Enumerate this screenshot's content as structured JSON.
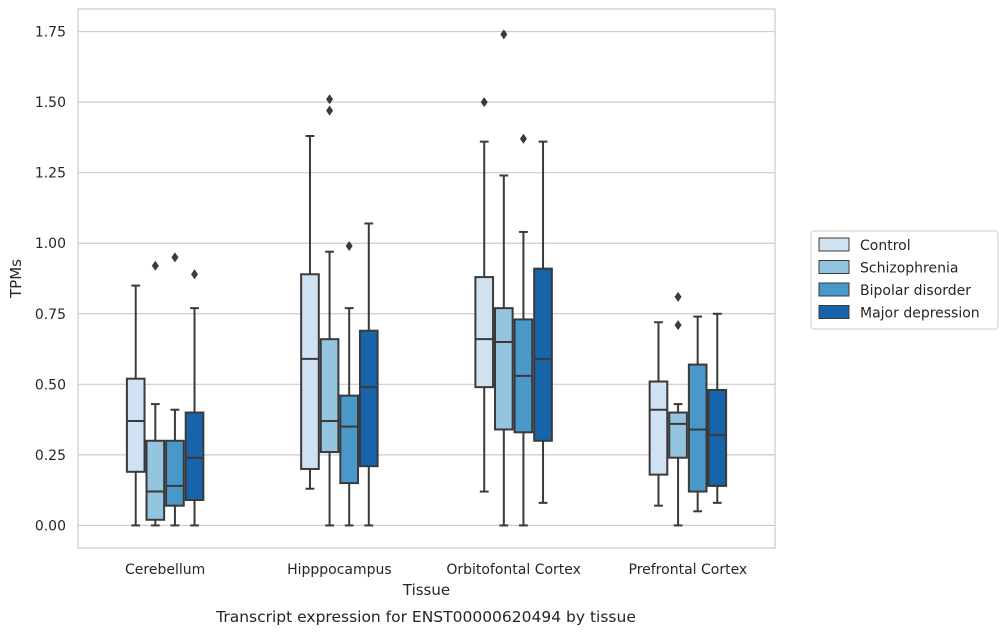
{
  "caption": "Transcript expression for ENST00000620494 by tissue",
  "chart_data": {
    "type": "box",
    "xlabel": "Tissue",
    "ylabel": "TPMs",
    "ylim": [
      -0.08,
      1.83
    ],
    "yticks": [
      0.0,
      0.25,
      0.5,
      0.75,
      1.0,
      1.25,
      1.5,
      1.75
    ],
    "ytick_labels": [
      "0.00",
      "0.25",
      "0.50",
      "0.75",
      "1.00",
      "1.25",
      "1.50",
      "1.75"
    ],
    "grid": "horizontal",
    "legend_position": "right",
    "categories": [
      "Cerebellum",
      "Hipppocampus",
      "Orbitofontal Cortex",
      "Prefrontal Cortex"
    ],
    "series": [
      {
        "name": "Control",
        "color": "#d0e1f2",
        "boxes": [
          {
            "whislo": 0.0,
            "q1": 0.19,
            "med": 0.37,
            "q3": 0.52,
            "whishi": 0.85,
            "fliers": []
          },
          {
            "whislo": 0.13,
            "q1": 0.2,
            "med": 0.59,
            "q3": 0.89,
            "whishi": 1.38,
            "fliers": []
          },
          {
            "whislo": 0.12,
            "q1": 0.49,
            "med": 0.66,
            "q3": 0.88,
            "whishi": 1.36,
            "fliers": [
              1.5
            ]
          },
          {
            "whislo": 0.07,
            "q1": 0.18,
            "med": 0.41,
            "q3": 0.51,
            "whishi": 0.72,
            "fliers": []
          }
        ]
      },
      {
        "name": "Schizophrenia",
        "color": "#94c4df",
        "boxes": [
          {
            "whislo": 0.0,
            "q1": 0.02,
            "med": 0.12,
            "q3": 0.3,
            "whishi": 0.43,
            "fliers": [
              0.92
            ]
          },
          {
            "whislo": 0.0,
            "q1": 0.26,
            "med": 0.37,
            "q3": 0.66,
            "whishi": 0.97,
            "fliers": [
              1.47,
              1.51
            ]
          },
          {
            "whislo": 0.0,
            "q1": 0.34,
            "med": 0.65,
            "q3": 0.77,
            "whishi": 1.24,
            "fliers": [
              1.74
            ]
          },
          {
            "whislo": 0.0,
            "q1": 0.24,
            "med": 0.36,
            "q3": 0.4,
            "whishi": 0.43,
            "fliers": [
              0.71,
              0.81
            ]
          }
        ]
      },
      {
        "name": "Bipolar disorder",
        "color": "#4a98c9",
        "boxes": [
          {
            "whislo": 0.0,
            "q1": 0.07,
            "med": 0.14,
            "q3": 0.3,
            "whishi": 0.41,
            "fliers": [
              0.95
            ]
          },
          {
            "whislo": 0.0,
            "q1": 0.15,
            "med": 0.35,
            "q3": 0.46,
            "whishi": 0.77,
            "fliers": [
              0.99
            ]
          },
          {
            "whislo": 0.0,
            "q1": 0.33,
            "med": 0.53,
            "q3": 0.73,
            "whishi": 1.04,
            "fliers": [
              1.37
            ]
          },
          {
            "whislo": 0.05,
            "q1": 0.12,
            "med": 0.34,
            "q3": 0.57,
            "whishi": 0.74,
            "fliers": []
          }
        ]
      },
      {
        "name": "Major depression",
        "color": "#1764ab",
        "boxes": [
          {
            "whislo": 0.0,
            "q1": 0.09,
            "med": 0.24,
            "q3": 0.4,
            "whishi": 0.77,
            "fliers": [
              0.89
            ]
          },
          {
            "whislo": 0.0,
            "q1": 0.21,
            "med": 0.49,
            "q3": 0.69,
            "whishi": 1.07,
            "fliers": []
          },
          {
            "whislo": 0.08,
            "q1": 0.3,
            "med": 0.59,
            "q3": 0.91,
            "whishi": 1.36,
            "fliers": []
          },
          {
            "whislo": 0.08,
            "q1": 0.14,
            "med": 0.32,
            "q3": 0.48,
            "whishi": 0.75,
            "fliers": []
          }
        ]
      }
    ]
  }
}
